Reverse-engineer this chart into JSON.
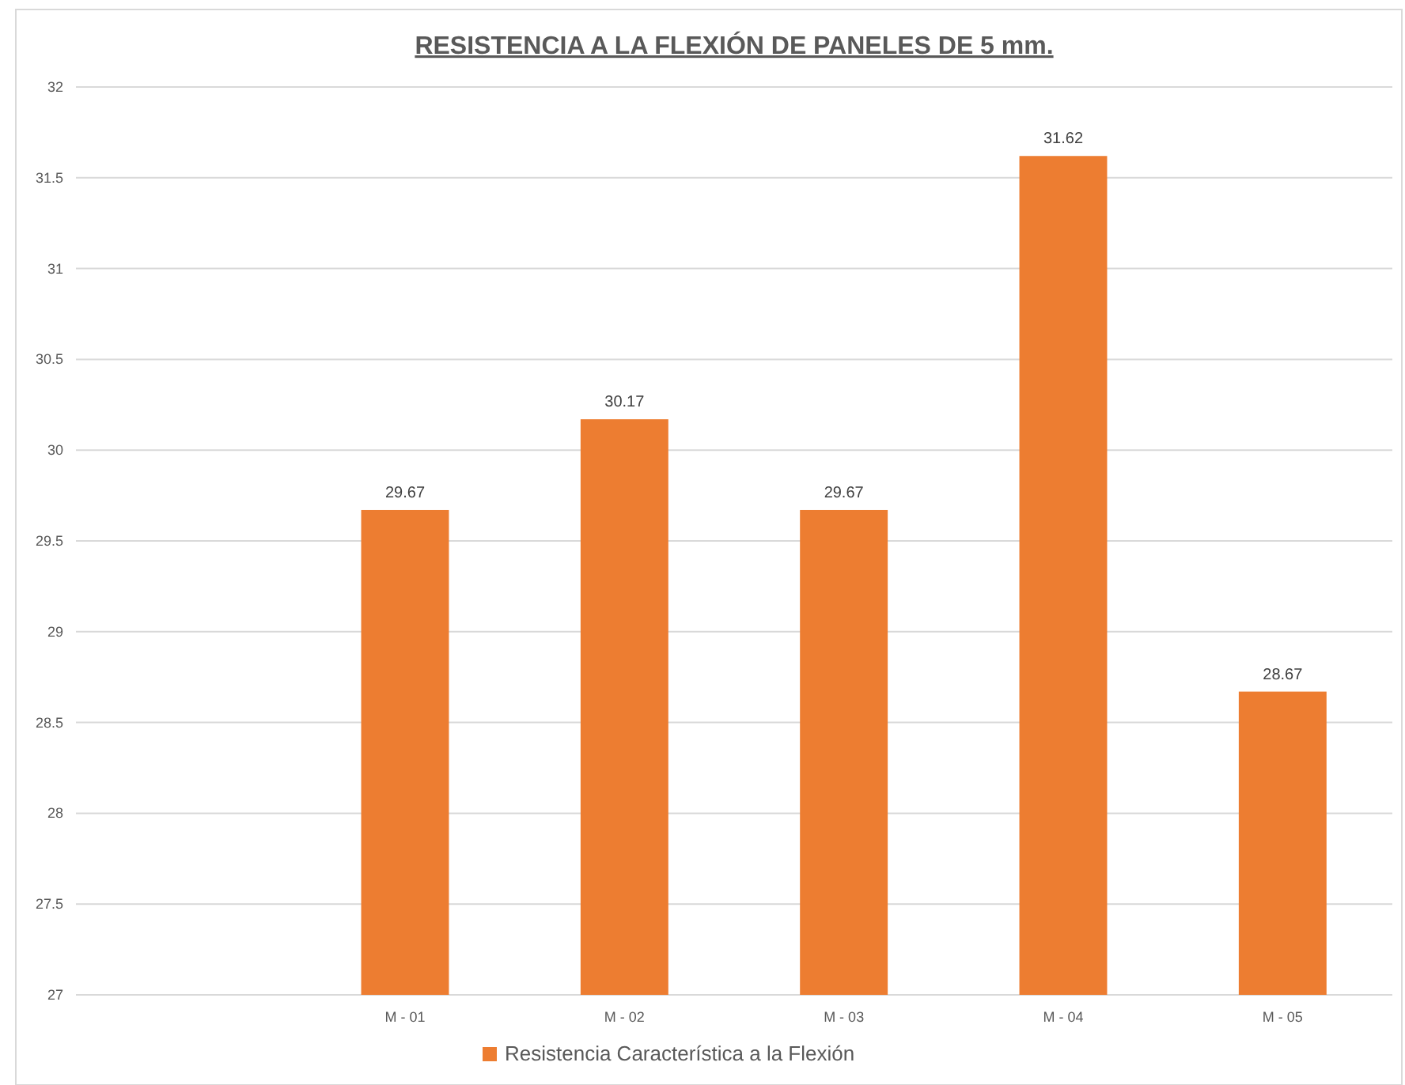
{
  "chart_data": {
    "type": "bar",
    "title": "RESISTENCIA A LA FLEXIÓN DE PANELES DE 5 mm.",
    "categories": [
      null,
      "M - 01",
      "M - 02",
      "M - 03",
      "M - 04",
      "M - 05"
    ],
    "series": [
      {
        "name": "Resistencia Característica a la Flexión",
        "color": "#ed7d31",
        "values": [
          null,
          29.67,
          30.17,
          29.67,
          31.62,
          28.67
        ]
      }
    ],
    "ylim": [
      27,
      32
    ],
    "yticks": [
      27,
      27.5,
      28,
      28.5,
      29,
      29.5,
      30,
      30.5,
      31,
      31.5,
      32
    ],
    "grid": "y",
    "data_labels": true,
    "legend": "bottom"
  }
}
